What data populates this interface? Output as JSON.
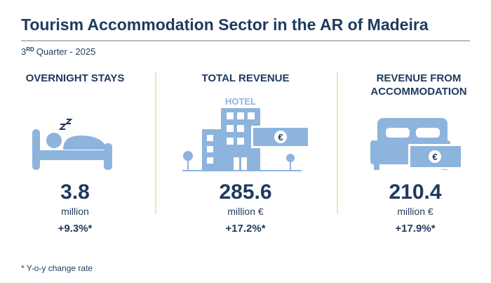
{
  "header": {
    "title": "Tourism Accommodation Sector in the AR of Madeira",
    "subtitle": {
      "ordinal": "3",
      "ordinal_suffix": "RD",
      "text": "Quarter - 2025"
    }
  },
  "currency_symbol": "€",
  "panels": [
    {
      "label": "OVERNIGHT STAYS",
      "value": 3.8,
      "unit": "million",
      "change": "+9.3%*"
    },
    {
      "label": "TOTAL REVENUE",
      "icon_text": "HOTEL",
      "value": 285.6,
      "unit": "million €",
      "change": "+17.2%*"
    },
    {
      "label_lines": [
        "REVENUE FROM",
        "ACCOMMODATION"
      ],
      "value": 210.4,
      "unit": "million €",
      "change": "+17.9%*"
    }
  ],
  "footnote": "* Y-o-y change rate"
}
